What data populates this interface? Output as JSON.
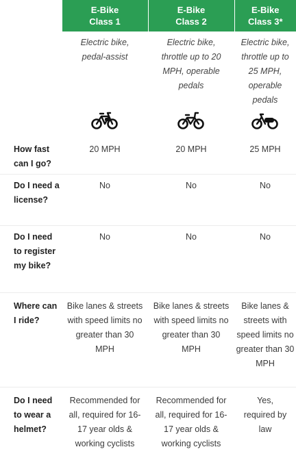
{
  "header": {
    "class1": "E-Bike\nClass 1",
    "class2": "E-Bike\nClass 2",
    "class3": "E-Bike\nClass 3*"
  },
  "descriptions": {
    "class1": "Electric bike, pedal-assist",
    "class2": "Electric bike, throttle up to 20 MPH, operable pedals",
    "class3": "Electric bike, throttle up to 25 MPH, operable pedals"
  },
  "icons": [
    "bicycle-pedal-assist-icon",
    "bicycle-throttle-icon",
    "electric-scooter-bike-icon"
  ],
  "rows": [
    {
      "question": "How fast can I go?",
      "values": [
        "20 MPH",
        "20 MPH",
        "25 MPH"
      ]
    },
    {
      "question": "Do I need a license?",
      "values": [
        "No",
        "No",
        "No"
      ]
    },
    {
      "question": "Do I need to register my bike?",
      "values": [
        "No",
        "No",
        "No"
      ]
    },
    {
      "question": "Where can I ride?",
      "values": [
        "Bike lanes & streets with speed limits no greater than 30 MPH",
        "Bike lanes & streets with speed limits no greater than 30 MPH",
        "Bike lanes & streets with speed limits no greater than 30 MPH"
      ]
    },
    {
      "question": "Do I need to wear a helmet?",
      "values": [
        "Recommended for all, required for 16-17 year olds & working cyclists",
        "Recommended for all, required for 16-17 year olds & working cyclists",
        "Yes, required by law"
      ]
    }
  ],
  "colors": {
    "header_green": "#2b9e54"
  }
}
